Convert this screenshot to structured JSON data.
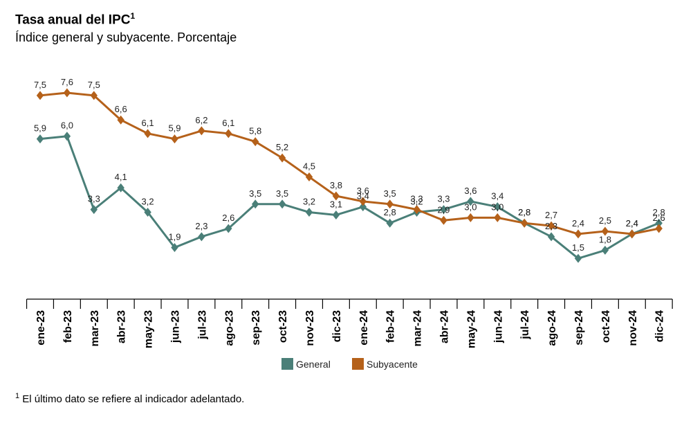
{
  "header": {
    "title": "Tasa anual del IPC",
    "title_sup": "1",
    "subtitle": "Índice general y subyacente. Porcentaje"
  },
  "footnote": {
    "marker": "1",
    "text": "El último dato se refiere al indicador adelantado."
  },
  "chart_data": {
    "type": "line",
    "title": "Tasa anual del IPC",
    "subtitle": "Índice general y subyacente. Porcentaje",
    "categories": [
      "ene-23",
      "feb-23",
      "mar-23",
      "abr-23",
      "may-23",
      "jun-23",
      "jul-23",
      "ago-23",
      "sep-23",
      "oct-23",
      "nov-23",
      "dic-23",
      "ene-24",
      "feb-24",
      "mar-24",
      "abr-24",
      "may-24",
      "jun-24",
      "jul-24",
      "ago-24",
      "sep-24",
      "oct-24",
      "nov-24",
      "dic-24"
    ],
    "series": [
      {
        "name": "General",
        "color": "#4a7f78",
        "values": [
          5.9,
          6.0,
          3.3,
          4.1,
          3.2,
          1.9,
          2.3,
          2.6,
          3.5,
          3.5,
          3.2,
          3.1,
          3.4,
          2.8,
          3.2,
          3.3,
          3.6,
          3.4,
          2.8,
          2.3,
          1.5,
          1.8,
          2.4,
          2.8
        ],
        "labels": [
          "5,9",
          "6,0",
          "3,3",
          "4,1",
          "3,2",
          "1,9",
          "2,3",
          "2,6",
          "3,5",
          "3,5",
          "3,2",
          "3,1",
          "3,4",
          "2,8",
          "3,2",
          "3,3",
          "3,6",
          "3,4",
          "2,8",
          "2,3",
          "1,5",
          "1,8",
          "2,4",
          "2,8"
        ]
      },
      {
        "name": "Subyacente",
        "color": "#b5611a",
        "values": [
          7.5,
          7.6,
          7.5,
          6.6,
          6.1,
          5.9,
          6.2,
          6.1,
          5.8,
          5.2,
          4.5,
          3.8,
          3.6,
          3.5,
          3.3,
          2.9,
          3.0,
          3.0,
          2.8,
          2.7,
          2.4,
          2.5,
          2.4,
          2.6
        ],
        "labels": [
          "7,5",
          "7,6",
          "7,5",
          "6,6",
          "6,1",
          "5,9",
          "6,2",
          "6,1",
          "5,8",
          "5,2",
          "4,5",
          "3,8",
          "3,6",
          "3,5",
          "3,3",
          "2,9",
          "3,0",
          "3,0",
          "2,8",
          "2,7",
          "2,4",
          "2,5",
          "2,4",
          "2,6"
        ]
      }
    ],
    "ylim": [
      0,
      8
    ],
    "grid": false,
    "legend_position": "bottom"
  }
}
